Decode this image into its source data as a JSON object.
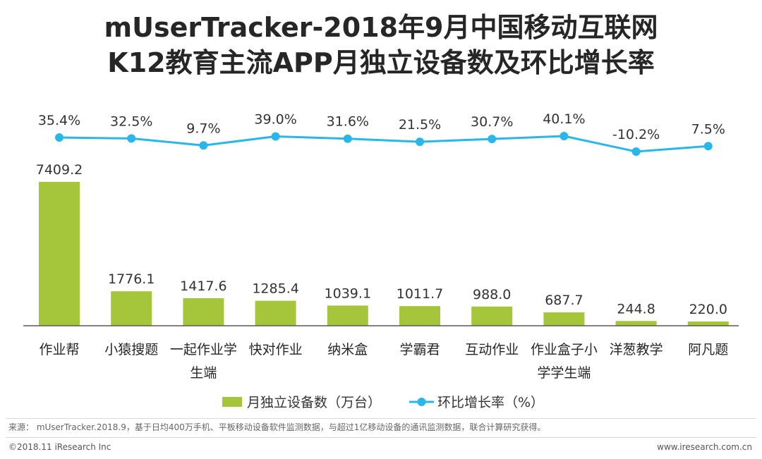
{
  "title_line1": "mUserTracker-2018年9月中国移动互联网",
  "title_line2": "K12教育主流APP月独立设备数及环比增长率",
  "chart_data": {
    "type": "bar",
    "title": "mUserTracker-2018年9月中国移动互联网 K12教育主流APP月独立设备数及环比增长率",
    "categories": [
      [
        "作业帮"
      ],
      [
        "小猿搜题"
      ],
      [
        "一起作业学",
        "生端"
      ],
      [
        "快对作业"
      ],
      [
        "纳米盒"
      ],
      [
        "学霸君"
      ],
      [
        "互动作业"
      ],
      [
        "作业盒子小",
        "学学生端"
      ],
      [
        "洋葱教学"
      ],
      [
        "阿凡题"
      ]
    ],
    "series": [
      {
        "name": "月独立设备数（万台）",
        "type": "bar",
        "color": "#a5c63b",
        "values": [
          7409.2,
          1776.1,
          1417.6,
          1285.4,
          1039.1,
          1011.7,
          988.0,
          687.7,
          244.8,
          220.0
        ],
        "labels": [
          "7409.2",
          "1776.1",
          "1417.6",
          "1285.4",
          "1039.1",
          "1011.7",
          "988.0",
          "687.7",
          "244.8",
          "220.0"
        ]
      },
      {
        "name": "环比增长率（%）",
        "type": "line",
        "color": "#29b6e8",
        "values": [
          35.4,
          32.5,
          9.7,
          39.0,
          31.6,
          21.5,
          30.7,
          40.1,
          -10.2,
          7.5
        ],
        "labels": [
          "35.4%",
          "32.5%",
          "9.7%",
          "39.0%",
          "31.6%",
          "21.5%",
          "30.7%",
          "40.1%",
          "-10.2%",
          "7.5%"
        ]
      }
    ],
    "ylim_bar": [
      0,
      7409.2
    ],
    "ylim_line": [
      -10.2,
      40.1
    ],
    "grid": false,
    "legend": "bottom-center",
    "axis_color": "#595959"
  },
  "footer": {
    "source": "来源： mUserTracker.2018.9，基于日均400万手机、平板移动设备软件监测数据，与超过1亿移动设备的通讯监测数据，联合计算研究获得。",
    "copyright": "©2018.11 iResearch Inc",
    "website": "www.iresearch.com.cn"
  }
}
